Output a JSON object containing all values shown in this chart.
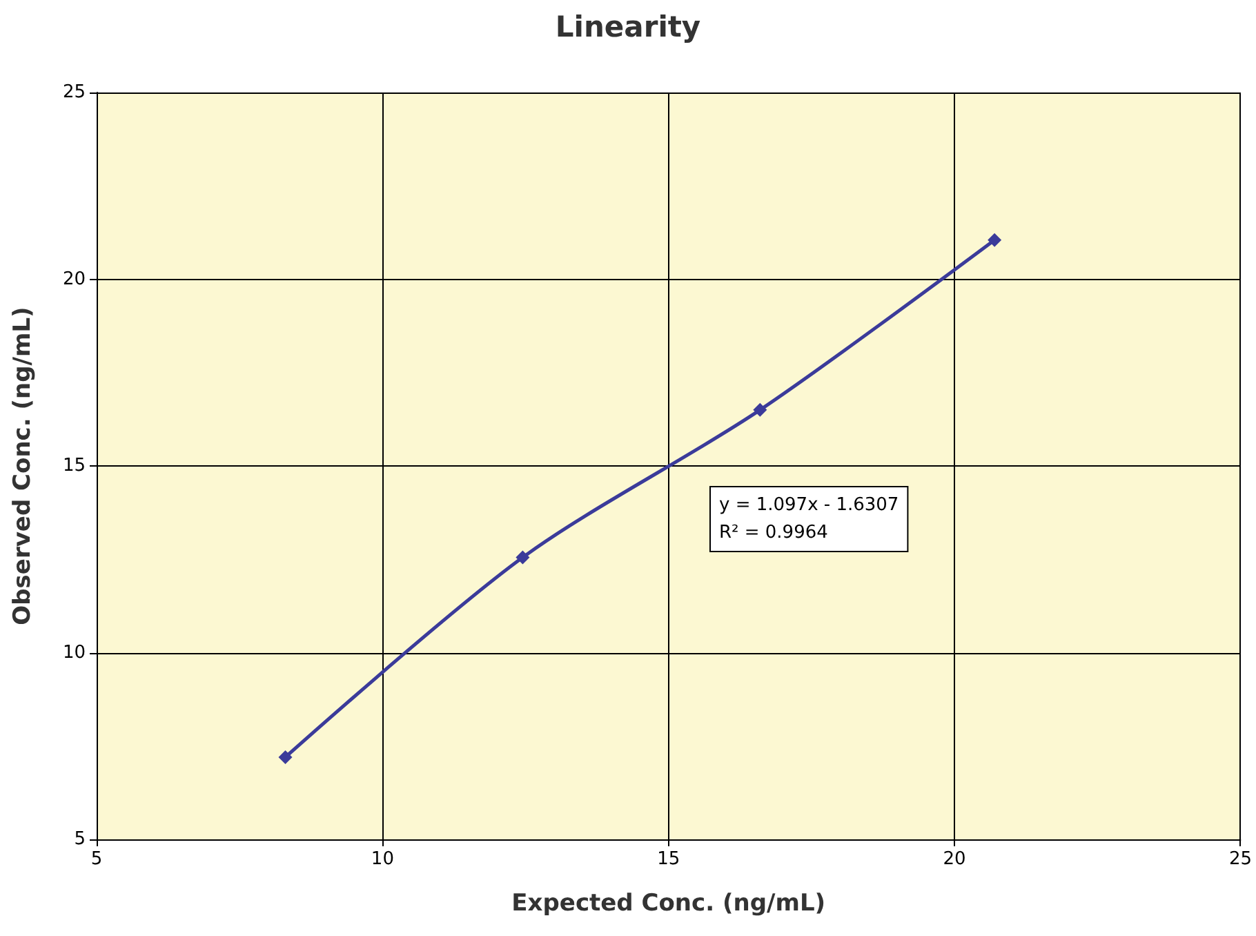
{
  "chart_data": {
    "type": "line",
    "title": "Linearity",
    "xlabel": "Expected Conc. (ng/mL)",
    "ylabel": "Observed Conc. (ng/mL)",
    "x": [
      8.3,
      12.45,
      16.6,
      20.7
    ],
    "series": [
      {
        "color": "#3b3b9a",
        "values": [
          7.2,
          12.55,
          16.5,
          21.05
        ]
      }
    ],
    "xlim": [
      5,
      25
    ],
    "xticks": [
      5,
      10,
      15,
      20,
      25
    ],
    "ylim": [
      5,
      25
    ],
    "yticks": [
      5,
      10,
      15,
      20,
      25
    ],
    "grid": true,
    "marker": "diamond",
    "line_style": "solid",
    "annotations": [
      "y = 1.097x - 1.6307",
      "R² = 0.9964"
    ]
  }
}
